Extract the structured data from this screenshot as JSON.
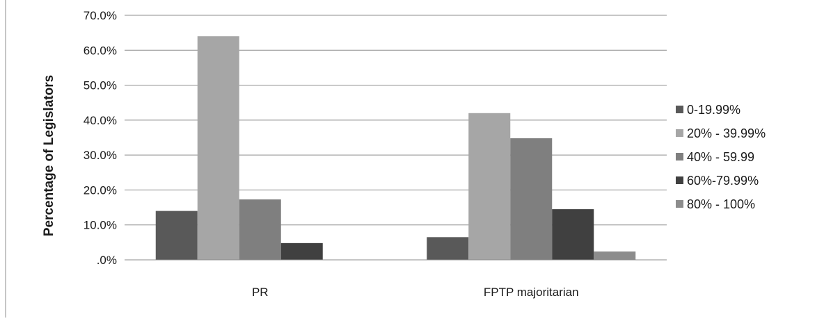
{
  "chart_data": {
    "type": "bar",
    "title": "",
    "xlabel": "",
    "ylabel": "Percentage of Legislators",
    "ylim": [
      0,
      70
    ],
    "y_ticks": [
      0,
      10,
      20,
      30,
      40,
      50,
      60,
      70
    ],
    "y_tick_labels": [
      ".0%",
      "10.0%",
      "20.0%",
      "30.0%",
      "40.0%",
      "50.0%",
      "60.0%",
      "70.0%"
    ],
    "grid": true,
    "legend_position": "right",
    "categories": [
      "PR",
      "FPTP majoritarian"
    ],
    "series": [
      {
        "name": "0-19.99%",
        "color": "#595959",
        "values": [
          14.0,
          6.5
        ]
      },
      {
        "name": "20% - 39.99%",
        "color": "#a6a6a6",
        "values": [
          64.0,
          42.0
        ]
      },
      {
        "name": "40% - 59.99",
        "color": "#7f7f7f",
        "values": [
          17.3,
          34.8
        ]
      },
      {
        "name": "60%-79.99%",
        "color": "#404040",
        "values": [
          4.8,
          14.5
        ]
      },
      {
        "name": "80% - 100%",
        "color": "#8c8c8c",
        "values": [
          0,
          2.4
        ]
      }
    ]
  }
}
